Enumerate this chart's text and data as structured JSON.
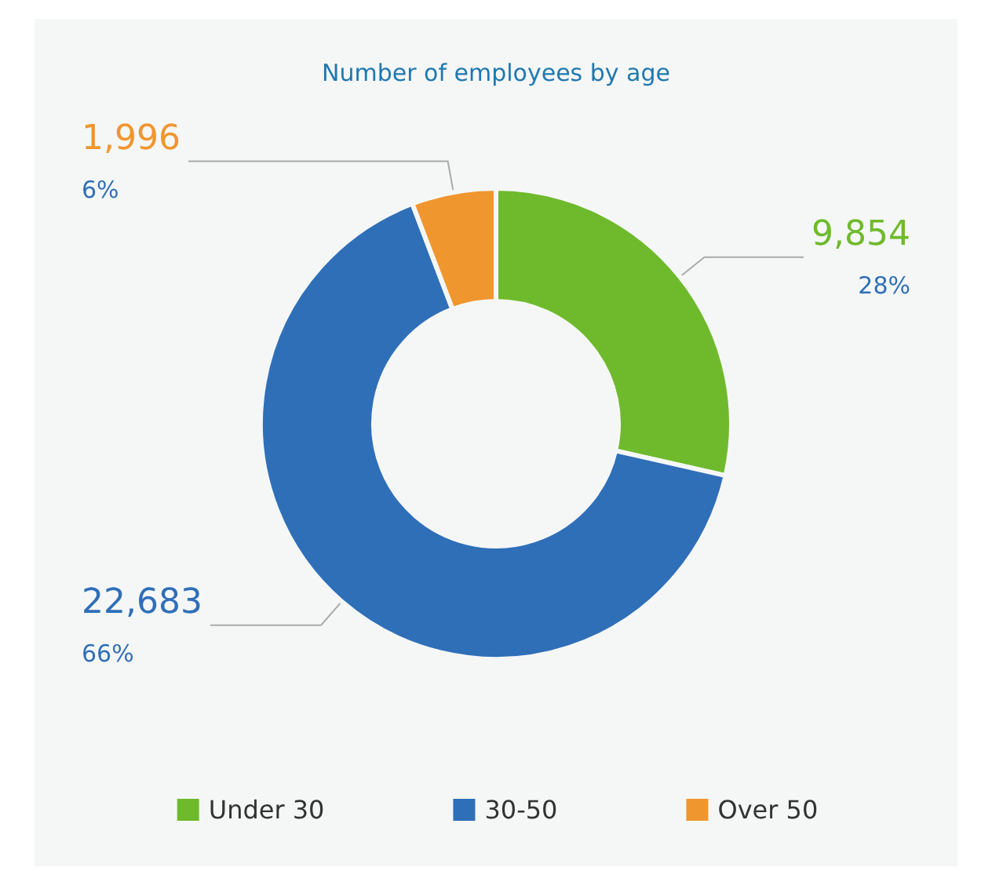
{
  "chart_data": {
    "type": "donut",
    "title": "Number of employees by age",
    "categories": [
      "Under 30",
      "30-50",
      "Over 50"
    ],
    "values": [
      9854,
      22683,
      1996
    ],
    "colors": [
      "#6fba2c",
      "#2f6fb8",
      "#f0962e"
    ],
    "value_labels": [
      "9,854\n28%",
      "22,683\n66%",
      "1,996\n6%"
    ],
    "legend": "bottom"
  }
}
